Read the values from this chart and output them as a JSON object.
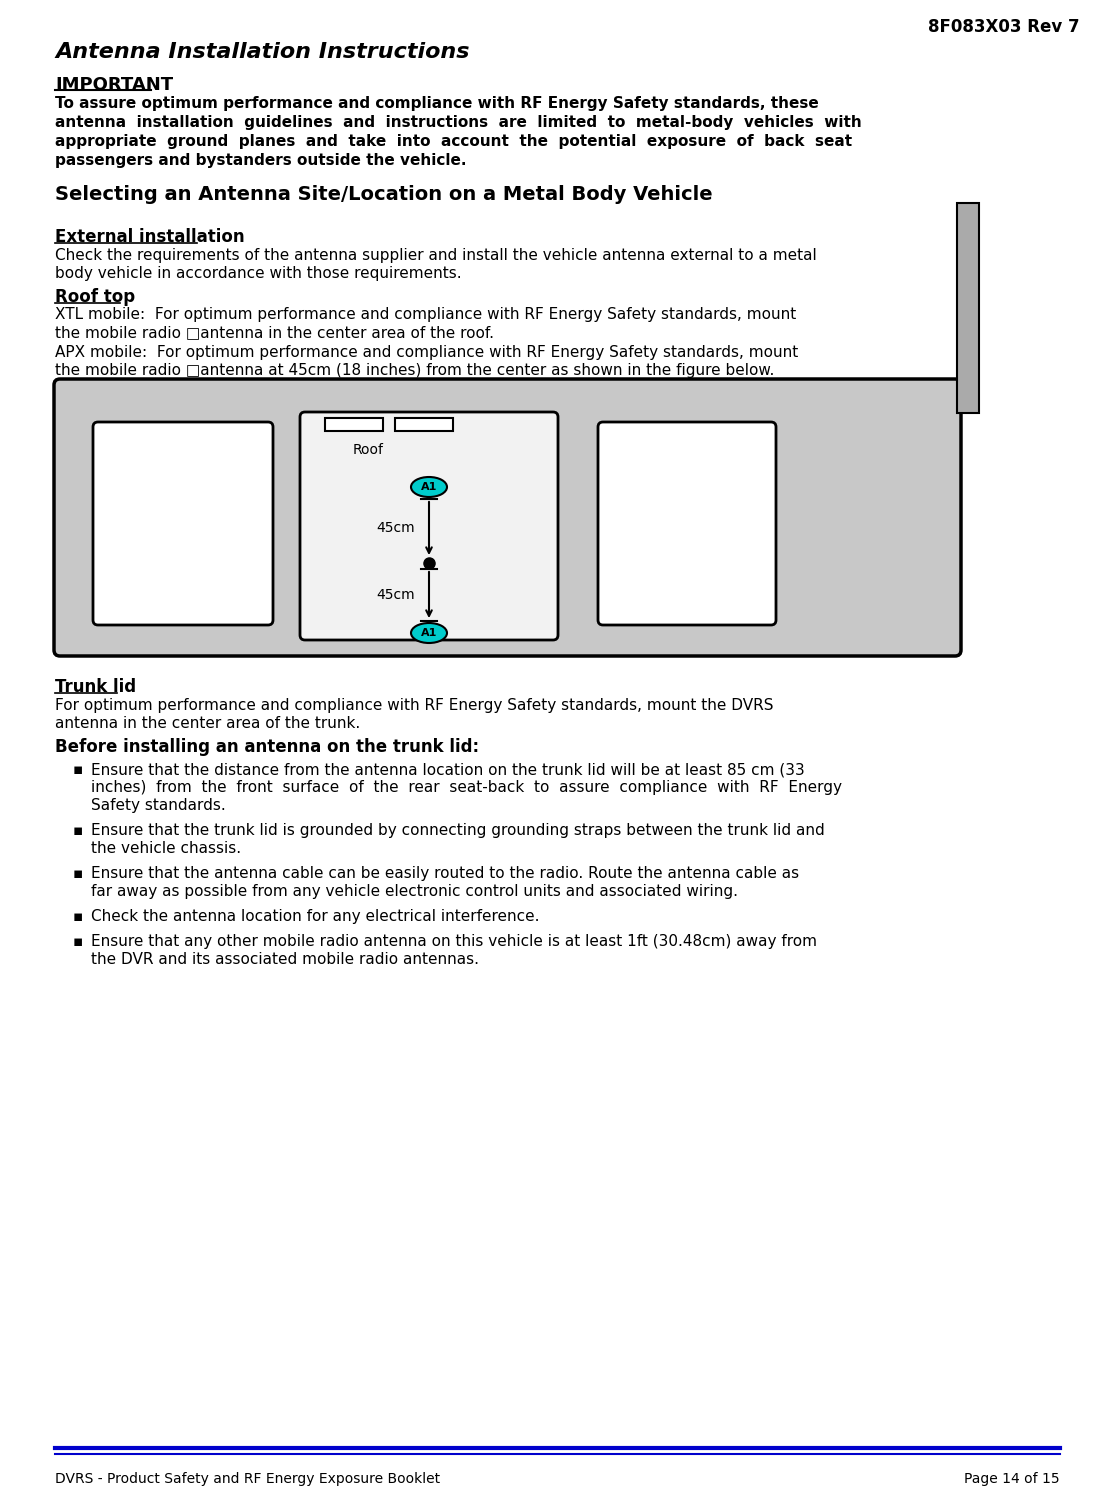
{
  "page_header": "8F083X03 Rev 7",
  "title": "Antenna Installation Instructions",
  "important_label": "IMPORTANT",
  "imp_line1": "To assure optimum performance and compliance with RF Energy Safety standards, these",
  "imp_line2": "antenna  installation  guidelines  and  instructions  are  limited  to  metal-body  vehicles  with",
  "imp_line3": "appropriate  ground  planes  and  take  into  account  the  potential  exposure  of  back  seat",
  "imp_line4": "passengers and bystanders outside the vehicle.",
  "section1_title": "Selecting an Antenna Site/Location on a Metal Body Vehicle",
  "ext_install_title": "External installation",
  "ext_line1": "Check the requirements of the antenna supplier and install the vehicle antenna external to a metal",
  "ext_line2": "body vehicle in accordance with those requirements.",
  "roof_top_title": "Roof top",
  "xtl_l1": "XTL mobile:  For optimum performance and compliance with RF Energy Safety standards, mount",
  "xtl_l2": "the mobile radio □antenna in the center area of the roof.",
  "apx_l1": "APX mobile:  For optimum performance and compliance with RF Energy Safety standards, mount",
  "apx_l2": "the mobile radio □antenna at 45cm (18 inches) from the center as shown in the figure below.",
  "roof_label": "Roof",
  "a1_label": "A1",
  "dist_label": "45cm",
  "trunk_lid_title": "Trunk lid",
  "trunk_l1": "For optimum performance and compliance with RF Energy Safety standards, mount the DVRS",
  "trunk_l2": "antenna in the center area of the trunk.",
  "before_install_title": "Before installing an antenna on the trunk lid:",
  "b1_l1": "Ensure that the distance from the antenna location on the trunk lid will be at least 85 cm (33",
  "b1_l2": "inches)  from  the  front  surface  of  the  rear  seat-back  to  assure  compliance  with  RF  Energy",
  "b1_l3": "Safety standards.",
  "b2_l1": "Ensure that the trunk lid is grounded by connecting grounding straps between the trunk lid and",
  "b2_l2": "the vehicle chassis.",
  "b3_l1": "Ensure that the antenna cable can be easily routed to the radio. Route the antenna cable as",
  "b3_l2": "far away as possible from any vehicle electronic control units and associated wiring.",
  "b4_l1": "Check the antenna location for any electrical interference.",
  "b5_l1": "Ensure that any other mobile radio antenna on this vehicle is at least 1ft (30.48cm) away from",
  "b5_l2": "the DVR and its associated mobile radio antennas.",
  "footer_left": "DVRS - Product Safety and RF Energy Exposure Booklet",
  "footer_right": "Page 14 of 15",
  "bg_color": "#ffffff",
  "text_color": "#000000",
  "footer_line_color": "#0000cc",
  "diagram_bg": "#c8c8c8",
  "window_color": "#ffffff",
  "antenna_circle_color": "#00cccc",
  "right_bar_color": "#aaaaaa"
}
